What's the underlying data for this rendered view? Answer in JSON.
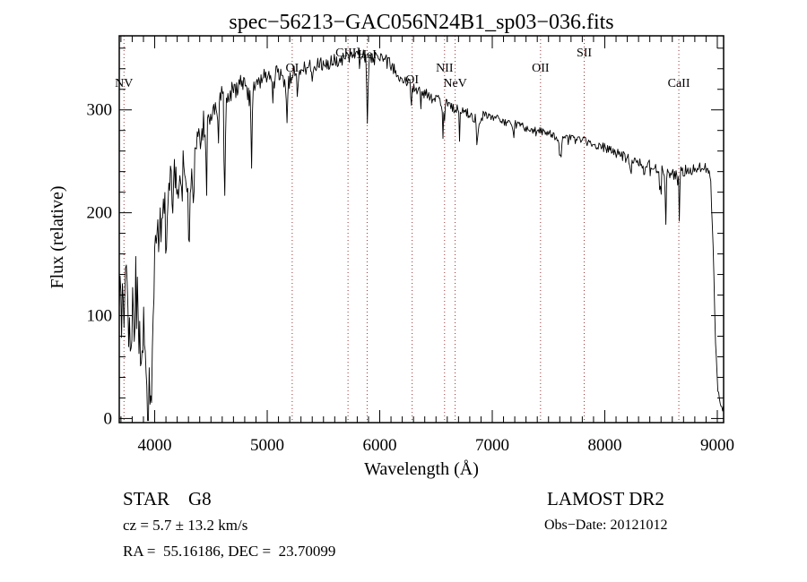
{
  "header": {
    "title": "spec−56213−GAC056N24B1_sp03−036.fits"
  },
  "footer": {
    "classification": "STAR    G8",
    "cz": "cz = 5.7 ± 13.2 km/s",
    "radec": "RA =  55.16186, DEC =  23.70099",
    "survey": "LAMOST DR2",
    "obs_date": "Obs−Date: 20121012"
  },
  "colors": {
    "background": "#ffffff",
    "spectrum": "#000000",
    "marker_line": "#993333",
    "text": "#000000"
  },
  "chart_data": {
    "type": "line",
    "title": "spec−56213−GAC056N24B1_sp03−036.fits",
    "xlabel": "Wavelength (Å)",
    "ylabel": "Flux (relative)",
    "xlim": [
      3685,
      9056
    ],
    "ylim": [
      -4,
      372
    ],
    "grid": false,
    "x_ticks": [
      4000,
      5000,
      6000,
      7000,
      8000,
      9000
    ],
    "y_ticks": [
      0,
      100,
      200,
      300
    ],
    "x_minor_step": 100,
    "y_minor_step": 20,
    "line_markers": [
      {
        "label": "NV",
        "wavelength": 3727,
        "label_y": 97
      },
      {
        "label": "OI",
        "wavelength": 5222,
        "label_y": 80
      },
      {
        "label": "CIII]",
        "wavelength": 5718,
        "label_y": 63
      },
      {
        "label": "HeI",
        "wavelength": 5888,
        "label_y": 65
      },
      {
        "label": "OI",
        "wavelength": 6288,
        "label_y": 93
      },
      {
        "label": "NII",
        "wavelength": 6576,
        "label_y": 80
      },
      {
        "label": "NeV",
        "wavelength": 6670,
        "label_y": 97
      },
      {
        "label": "OII",
        "wavelength": 7429,
        "label_y": 80
      },
      {
        "label": "SII",
        "wavelength": 7817,
        "label_y": 63
      },
      {
        "label": "CaII",
        "wavelength": 8658,
        "label_y": 97
      }
    ],
    "envelope": [
      [
        3685,
        125
      ],
      [
        3700,
        135
      ],
      [
        3715,
        95
      ],
      [
        3730,
        105
      ],
      [
        3745,
        120
      ],
      [
        3760,
        85
      ],
      [
        3775,
        95
      ],
      [
        3790,
        78
      ],
      [
        3805,
        90
      ],
      [
        3820,
        112
      ],
      [
        3835,
        128
      ],
      [
        3850,
        100
      ],
      [
        3865,
        70
      ],
      [
        3880,
        62
      ],
      [
        3895,
        90
      ],
      [
        3910,
        75
      ],
      [
        3925,
        55
      ],
      [
        3940,
        50
      ],
      [
        3955,
        40
      ],
      [
        3970,
        55
      ],
      [
        3985,
        115
      ],
      [
        4000,
        160
      ],
      [
        4020,
        185
      ],
      [
        4040,
        172
      ],
      [
        4060,
        195
      ],
      [
        4080,
        212
      ],
      [
        4100,
        195
      ],
      [
        4130,
        222
      ],
      [
        4160,
        232
      ],
      [
        4200,
        238
      ],
      [
        4250,
        242
      ],
      [
        4300,
        228
      ],
      [
        4340,
        240
      ],
      [
        4380,
        272
      ],
      [
        4420,
        282
      ],
      [
        4460,
        290
      ],
      [
        4500,
        298
      ],
      [
        4550,
        306
      ],
      [
        4600,
        313
      ],
      [
        4650,
        318
      ],
      [
        4700,
        321
      ],
      [
        4750,
        324
      ],
      [
        4800,
        322
      ],
      [
        4860,
        310
      ],
      [
        4900,
        328
      ],
      [
        4950,
        331
      ],
      [
        5000,
        334
      ],
      [
        5060,
        336
      ],
      [
        5120,
        334
      ],
      [
        5180,
        326
      ],
      [
        5240,
        337
      ],
      [
        5300,
        340
      ],
      [
        5400,
        342
      ],
      [
        5500,
        345
      ],
      [
        5600,
        348
      ],
      [
        5700,
        351
      ],
      [
        5800,
        354
      ],
      [
        5900,
        349
      ],
      [
        5960,
        354
      ],
      [
        6020,
        351
      ],
      [
        6080,
        345
      ],
      [
        6140,
        338
      ],
      [
        6200,
        331
      ],
      [
        6260,
        326
      ],
      [
        6320,
        321
      ],
      [
        6380,
        317
      ],
      [
        6440,
        313
      ],
      [
        6500,
        310
      ],
      [
        6560,
        307
      ],
      [
        6620,
        304
      ],
      [
        6680,
        301
      ],
      [
        6740,
        298
      ],
      [
        6800,
        296
      ],
      [
        6860,
        291
      ],
      [
        6920,
        294
      ],
      [
        7000,
        292
      ],
      [
        7100,
        289
      ],
      [
        7200,
        286
      ],
      [
        7300,
        283
      ],
      [
        7400,
        280
      ],
      [
        7500,
        277
      ],
      [
        7580,
        272
      ],
      [
        7640,
        273
      ],
      [
        7720,
        274
      ],
      [
        7800,
        271
      ],
      [
        7900,
        267
      ],
      [
        8000,
        263
      ],
      [
        8100,
        258
      ],
      [
        8200,
        253
      ],
      [
        8300,
        249
      ],
      [
        8400,
        246
      ],
      [
        8500,
        242
      ],
      [
        8570,
        238
      ],
      [
        8640,
        238
      ],
      [
        8700,
        241
      ],
      [
        8760,
        243
      ],
      [
        8820,
        241
      ],
      [
        8870,
        246
      ],
      [
        8910,
        243
      ],
      [
        8940,
        232
      ],
      [
        8965,
        160
      ],
      [
        8985,
        70
      ],
      [
        9005,
        28
      ],
      [
        9025,
        12
      ],
      [
        9056,
        8
      ]
    ],
    "absorption_dips": [
      [
        3934,
        7,
        55
      ],
      [
        3969,
        7,
        60
      ],
      [
        4102,
        5,
        42
      ],
      [
        4227,
        4,
        25
      ],
      [
        4305,
        7,
        45
      ],
      [
        4341,
        5,
        40
      ],
      [
        4460,
        3,
        85
      ],
      [
        4565,
        3,
        55
      ],
      [
        4620,
        3,
        175
      ],
      [
        4861,
        4,
        62
      ],
      [
        5175,
        6,
        42
      ],
      [
        5270,
        4,
        28
      ],
      [
        5890,
        5,
        60
      ],
      [
        6280,
        3,
        20
      ],
      [
        6367,
        3,
        18
      ],
      [
        6563,
        4,
        35
      ],
      [
        6710,
        3,
        22
      ],
      [
        6870,
        8,
        16
      ],
      [
        7190,
        6,
        14
      ],
      [
        7605,
        10,
        20
      ],
      [
        8230,
        5,
        14
      ],
      [
        8350,
        4,
        12
      ],
      [
        8498,
        4,
        28
      ],
      [
        8542,
        4,
        50
      ],
      [
        8662,
        4,
        42
      ]
    ],
    "noise_profile": [
      [
        3685,
        42
      ],
      [
        3800,
        40
      ],
      [
        3900,
        38
      ],
      [
        4000,
        28
      ],
      [
        4150,
        22
      ],
      [
        4300,
        18
      ],
      [
        4500,
        14
      ],
      [
        4700,
        11
      ],
      [
        5000,
        9
      ],
      [
        5300,
        8
      ],
      [
        5600,
        7
      ],
      [
        6000,
        7
      ],
      [
        6300,
        6
      ],
      [
        6600,
        5
      ],
      [
        7000,
        5
      ],
      [
        7400,
        4
      ],
      [
        7800,
        4
      ],
      [
        8200,
        5
      ],
      [
        8600,
        6
      ],
      [
        8900,
        5
      ],
      [
        9056,
        4
      ]
    ],
    "sampling_step": 7,
    "noise_seed": 99,
    "spike_probability": 0.05,
    "spike_multiplier": 2.5
  }
}
